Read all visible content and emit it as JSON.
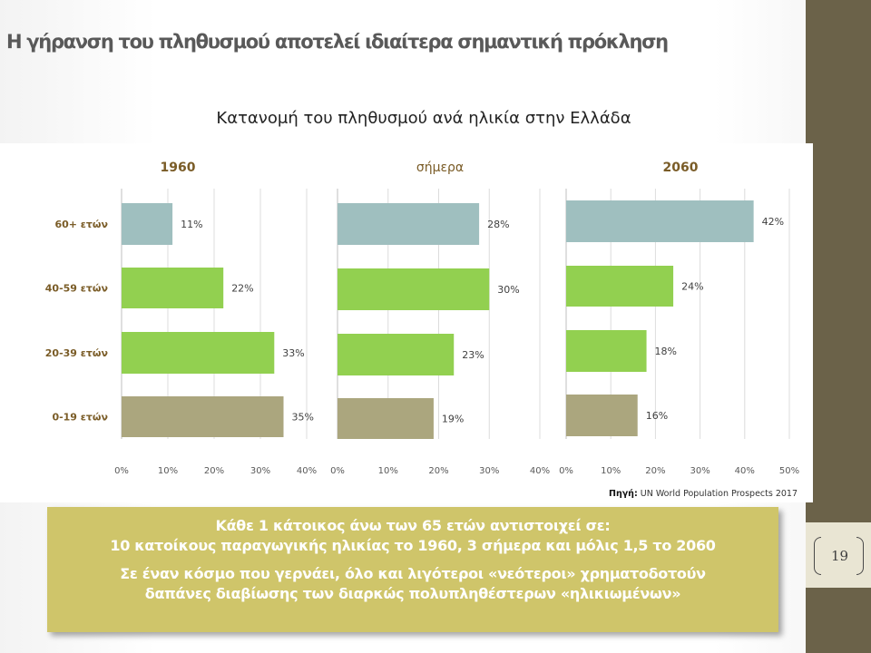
{
  "slide": {
    "title": "Η γήρανση του πληθυσμού αποτελεί ιδιαίτερα σημαντική πρόκληση",
    "page_number": "19"
  },
  "colors": {
    "band": "#6b6249",
    "box": "#cfc56a",
    "bar_60plus": "#9fbfbf",
    "bar_working": "#92d050",
    "bar_0_19": "#aba67e"
  },
  "chart_data": {
    "type": "bar",
    "orientation": "horizontal",
    "title": "Κατανομή του πληθυσμού ανά ηλικία στην Ελλάδα",
    "categories": [
      "60+ ετών",
      "40-59 ετών",
      "20-39 ετών",
      "0-19 ετών"
    ],
    "value_unit": "%",
    "grid": true,
    "panels": [
      {
        "name": "1960",
        "values": [
          11,
          22,
          33,
          35
        ],
        "xlim": [
          0,
          40
        ],
        "ticks": [
          "0%",
          "10%",
          "20%",
          "30%",
          "40%"
        ]
      },
      {
        "name": "σήμερα",
        "values": [
          28,
          30,
          23,
          19
        ],
        "xlim": [
          0,
          40
        ],
        "ticks": [
          "0%",
          "10%",
          "20%",
          "30%",
          "40%"
        ]
      },
      {
        "name": "2060",
        "values": [
          42,
          24,
          18,
          16
        ],
        "xlim": [
          0,
          50
        ],
        "ticks": [
          "0%",
          "10%",
          "20%",
          "30%",
          "40%",
          "50%"
        ]
      }
    ]
  },
  "source": {
    "label": "Πηγή:",
    "text": " UN World Population Prospects 2017"
  },
  "info_box": {
    "line1": "Κάθε 1 κάτοικος άνω των 65 ετών αντιστοιχεί σε:",
    "line2": "10 κατοίκους παραγωγικής ηλικίας το 1960, 3 σήμερα και μόλις 1,5 το 2060",
    "line3": "Σε έναν κόσμο που γερνάει, όλο και λιγότεροι «νεότεροι» χρηματοδοτούν",
    "line4": "δαπάνες διαβίωσης των διαρκώς πολυπληθέστερων «ηλικιωμένων»"
  }
}
